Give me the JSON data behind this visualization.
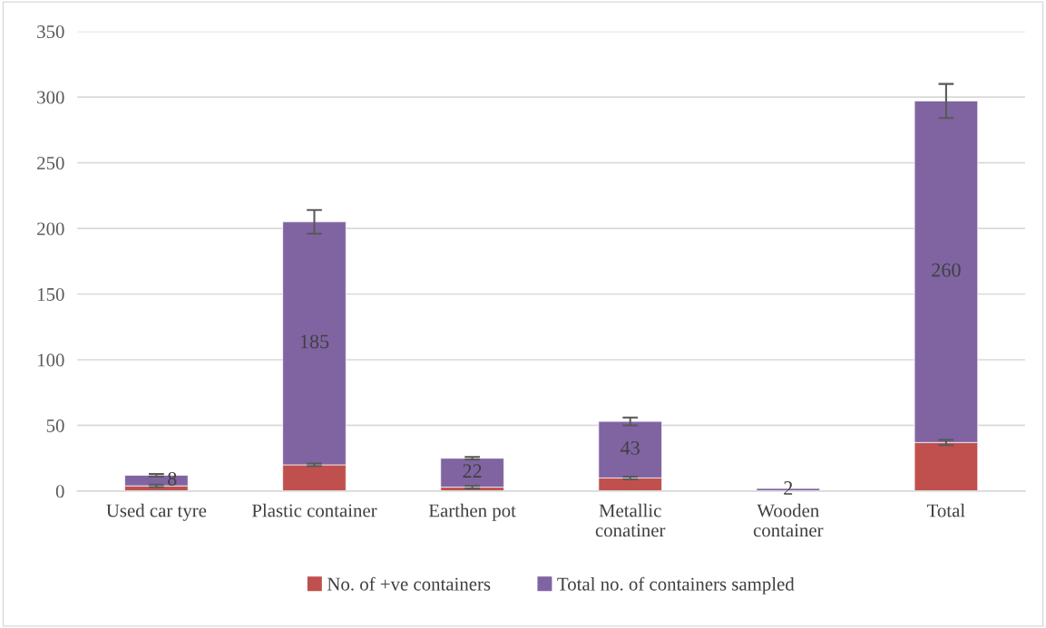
{
  "chart_data": {
    "type": "bar",
    "stacked": true,
    "categories": [
      "Used car tyre",
      "Plastic container",
      "Earthen pot",
      "Metallic\nconatiner",
      "Wooden\ncontainer",
      "Total"
    ],
    "series": [
      {
        "name": "No. of +ve containers",
        "color": "#c0504d",
        "values": [
          4,
          20,
          3,
          10,
          0,
          37
        ],
        "errors": [
          1,
          1,
          1,
          1,
          null,
          2
        ]
      },
      {
        "name": "Total no. of containers sampled",
        "color": "#8064a2",
        "values": [
          8,
          185,
          22,
          43,
          2,
          260
        ],
        "errors": [
          1,
          9,
          1,
          3,
          null,
          13
        ],
        "value_labels": [
          "8",
          "185",
          "22",
          "43",
          "2",
          "260"
        ]
      }
    ],
    "ylim": [
      0,
      350
    ],
    "yticks": [
      0,
      50,
      100,
      150,
      200,
      250,
      300,
      350
    ],
    "grid": "y",
    "legend": "bottom"
  }
}
